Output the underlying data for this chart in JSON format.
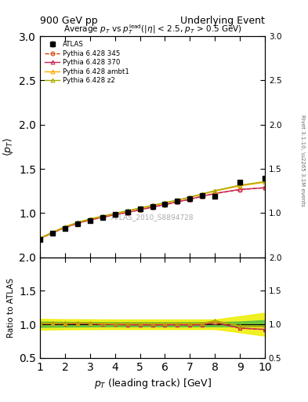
{
  "title_left": "900 GeV pp",
  "title_right": "Underlying Event",
  "plot_title": "Average $p_T$ vs $p_T^{\\mathrm{lead}}$(|$\\eta$| < 2.5, $p_T$ > 0.5 GeV)",
  "xlabel": "$p_T$ (leading track) [GeV]",
  "ylabel_main": "$\\langle p_T \\rangle$",
  "ylabel_ratio": "Ratio to ATLAS",
  "ylabel_right": "Rivet 3.1.10, \\u2265 3.1M events",
  "watermark": "ATLAS_2010_S8894728",
  "xlim": [
    1,
    10
  ],
  "ylim_main": [
    0.5,
    3.0
  ],
  "ylim_ratio": [
    0.5,
    2.0
  ],
  "yticks_main": [
    1.0,
    1.5,
    2.0,
    2.5,
    3.0
  ],
  "yticks_ratio": [
    0.5,
    1.0,
    1.5,
    2.0
  ],
  "atlas_x": [
    1.0,
    1.5,
    2.0,
    2.5,
    3.0,
    3.5,
    4.0,
    4.5,
    5.0,
    5.5,
    6.0,
    6.5,
    7.0,
    7.5,
    8.0,
    9.0,
    10.0
  ],
  "atlas_y": [
    0.705,
    0.77,
    0.83,
    0.875,
    0.915,
    0.95,
    0.985,
    1.015,
    1.045,
    1.075,
    1.105,
    1.135,
    1.165,
    1.2,
    1.19,
    1.345,
    1.395
  ],
  "atlas_yerr": [
    0.025,
    0.018,
    0.014,
    0.011,
    0.01,
    0.009,
    0.008,
    0.008,
    0.008,
    0.009,
    0.009,
    0.01,
    0.012,
    0.015,
    0.022,
    0.035,
    0.045
  ],
  "p345_x": [
    1.0,
    1.5,
    2.0,
    2.5,
    3.0,
    3.5,
    4.0,
    4.5,
    5.0,
    5.5,
    6.0,
    6.5,
    7.0,
    7.5,
    8.0,
    9.0,
    10.0
  ],
  "p345_y": [
    0.71,
    0.775,
    0.835,
    0.882,
    0.921,
    0.95,
    0.981,
    1.005,
    1.036,
    1.066,
    1.095,
    1.125,
    1.155,
    1.19,
    1.22,
    1.265,
    1.285
  ],
  "p370_x": [
    1.0,
    1.5,
    2.0,
    2.5,
    3.0,
    3.5,
    4.0,
    4.5,
    5.0,
    5.5,
    6.0,
    6.5,
    7.0,
    7.5,
    8.0,
    9.0,
    10.0
  ],
  "p370_y": [
    0.712,
    0.777,
    0.837,
    0.884,
    0.923,
    0.952,
    0.983,
    1.007,
    1.038,
    1.068,
    1.097,
    1.127,
    1.157,
    1.192,
    1.222,
    1.267,
    1.287
  ],
  "ambt1_x": [
    1.0,
    1.5,
    2.0,
    2.5,
    3.0,
    3.5,
    4.0,
    4.5,
    5.0,
    5.5,
    6.0,
    6.5,
    7.0,
    7.5,
    8.0,
    9.0,
    10.0
  ],
  "ambt1_y": [
    0.713,
    0.78,
    0.842,
    0.89,
    0.93,
    0.96,
    0.992,
    1.022,
    1.053,
    1.083,
    1.113,
    1.143,
    1.176,
    1.213,
    1.248,
    1.307,
    1.348
  ],
  "z2_x": [
    1.0,
    1.5,
    2.0,
    2.5,
    3.0,
    3.5,
    4.0,
    4.5,
    5.0,
    5.5,
    6.0,
    6.5,
    7.0,
    7.5,
    8.0,
    9.0,
    10.0
  ],
  "z2_y": [
    0.718,
    0.784,
    0.846,
    0.895,
    0.935,
    0.965,
    0.997,
    1.027,
    1.058,
    1.088,
    1.118,
    1.148,
    1.181,
    1.218,
    1.254,
    1.315,
    1.356
  ],
  "ratio_345_y": [
    1.007,
    1.007,
    1.006,
    1.008,
    1.007,
    0.999,
    0.996,
    0.991,
    0.991,
    0.991,
    0.991,
    0.991,
    0.991,
    0.992,
    1.025,
    0.941,
    0.921
  ],
  "ratio_370_y": [
    1.01,
    1.009,
    1.008,
    1.01,
    1.009,
    1.001,
    0.998,
    0.993,
    0.993,
    0.993,
    0.993,
    0.993,
    0.993,
    0.994,
    1.027,
    0.943,
    0.923
  ],
  "ratio_ambt1_y": [
    1.011,
    1.013,
    1.014,
    1.017,
    1.016,
    1.01,
    1.007,
    1.007,
    1.008,
    1.008,
    1.008,
    1.008,
    1.009,
    1.011,
    1.049,
    0.972,
    0.966
  ],
  "ratio_z2_y": [
    1.018,
    1.018,
    1.019,
    1.023,
    1.022,
    1.016,
    1.012,
    1.012,
    1.013,
    1.013,
    1.013,
    1.013,
    1.014,
    1.015,
    1.054,
    0.978,
    0.972
  ],
  "band_green_low": [
    0.96,
    0.963,
    0.965,
    0.966,
    0.967,
    0.968,
    0.969,
    0.969,
    0.969,
    0.969,
    0.969,
    0.969,
    0.969,
    0.969,
    0.969,
    0.969,
    0.969
  ],
  "band_green_high": [
    1.04,
    1.037,
    1.035,
    1.034,
    1.033,
    1.032,
    1.031,
    1.031,
    1.031,
    1.031,
    1.031,
    1.031,
    1.031,
    1.031,
    1.031,
    1.041,
    1.061
  ],
  "band_yellow_low": [
    0.92,
    0.923,
    0.925,
    0.926,
    0.927,
    0.928,
    0.929,
    0.929,
    0.929,
    0.929,
    0.929,
    0.929,
    0.929,
    0.929,
    0.929,
    0.879,
    0.829
  ],
  "band_yellow_high": [
    1.08,
    1.077,
    1.075,
    1.074,
    1.073,
    1.072,
    1.071,
    1.071,
    1.071,
    1.071,
    1.071,
    1.071,
    1.071,
    1.071,
    1.071,
    1.121,
    1.171
  ],
  "color_345": "#d44000",
  "color_370": "#cc2255",
  "color_ambt1": "#ffaa00",
  "color_z2": "#aaaa00",
  "color_atlas": "black",
  "color_green_band": "#44bb44",
  "color_yellow_band": "#eeee00",
  "legend_entries": [
    "ATLAS",
    "Pythia 6.428 345",
    "Pythia 6.428 370",
    "Pythia 6.428 ambt1",
    "Pythia 6.428 z2"
  ]
}
